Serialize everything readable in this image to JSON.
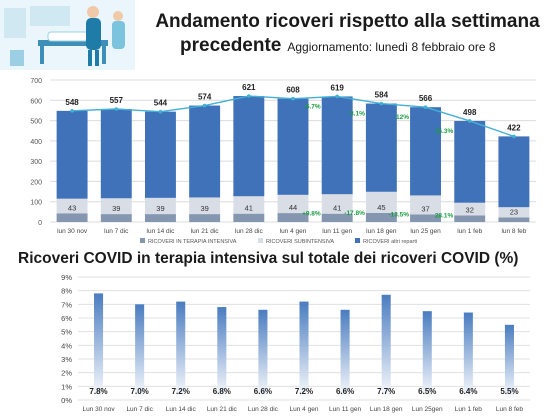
{
  "header": {
    "title_line1": "Andamento ricoveri rispetto alla settimana",
    "title_line2": "precedente",
    "update_text": "Aggiornamento: lunedì 8 febbraio ore 8"
  },
  "chart_data": [
    {
      "type": "bar",
      "stacked": true,
      "categories": [
        "lun 30 nov",
        "lun 7 dic",
        "lun 14 dic",
        "lun 21 dic",
        "lun 28 dic",
        "lun 4 gen",
        "lun 11 gen",
        "lun 18 gen",
        "lun 25 gen",
        "lun 1 feb",
        "lun 8 feb"
      ],
      "totals": [
        548,
        557,
        544,
        574,
        621,
        608,
        619,
        584,
        566,
        498,
        422
      ],
      "series": [
        {
          "name": "RICOVERI IN TERAPIA INTENSIVA",
          "color": "#8496b0",
          "values": [
            43,
            39,
            39,
            39,
            41,
            44,
            41,
            45,
            37,
            32,
            23
          ]
        },
        {
          "name": "RICOVERI SUBINTENSIVA",
          "color": "#d9dde6",
          "values": [
            72,
            78,
            80,
            82,
            86,
            90,
            96,
            104,
            94,
            63,
            50
          ]
        },
        {
          "name": "RICOVERI altri reparti",
          "color": "#3f72b8",
          "values": [
            433,
            440,
            425,
            453,
            494,
            474,
            482,
            435,
            435,
            403,
            349
          ]
        }
      ],
      "line": {
        "color": "#43b0d6",
        "values": [
          548,
          557,
          544,
          574,
          621,
          608,
          619,
          584,
          566,
          498,
          422
        ]
      },
      "pct_changes": [
        {
          "index": 6,
          "label": "-5.7%",
          "anchor": "top"
        },
        {
          "index": 7,
          "label": "-3.1%",
          "anchor": "top"
        },
        {
          "index": 8,
          "label": "-12%",
          "anchor": "top"
        },
        {
          "index": 9,
          "label": "15.3%",
          "anchor": "top"
        },
        {
          "index": 6,
          "label": "+9.8%",
          "anchor": "bottom"
        },
        {
          "index": 7,
          "label": "-17.8%",
          "anchor": "bottom"
        },
        {
          "index": 8,
          "label": "-13.5%",
          "anchor": "bottom"
        },
        {
          "index": 9,
          "label": "28.1%",
          "anchor": "bottom"
        }
      ],
      "ylim": [
        0,
        700
      ],
      "yticks": [
        0,
        100,
        200,
        300,
        400,
        500,
        600,
        700
      ],
      "grid": true,
      "legend_position": "bottom",
      "colors": {
        "pct_label": "#1a9e3f"
      }
    },
    {
      "type": "bar",
      "title": "Ricoveri COVID in terapia intensiva sul totale dei ricoveri COVID (%)",
      "categories": [
        "Lun 30 nov",
        "Lun 7 dic",
        "Lun 14 dic",
        "Lun 21 dic",
        "Lun 28 dic",
        "Lun 4 gen",
        "Lun 11 gen",
        "Lun 18 gen",
        "Lun 25gen",
        "Lun 1 feb",
        "Lun 8 feb"
      ],
      "values": [
        7.8,
        7.0,
        7.2,
        6.8,
        6.6,
        7.2,
        6.6,
        7.7,
        6.5,
        6.4,
        5.5
      ],
      "value_labels": [
        "7.8%",
        "7.0%",
        "7.2%",
        "6.8%",
        "6.6%",
        "7.2%",
        "6.6%",
        "7.7%",
        "6.5%",
        "6.4%",
        "5.5%"
      ],
      "ylim": [
        0,
        9
      ],
      "yticks": [
        "0%",
        "1%",
        "2%",
        "3%",
        "4%",
        "5%",
        "6%",
        "7%",
        "8%",
        "9%"
      ],
      "grid": true,
      "bar_color": "#4a7cc0"
    }
  ]
}
